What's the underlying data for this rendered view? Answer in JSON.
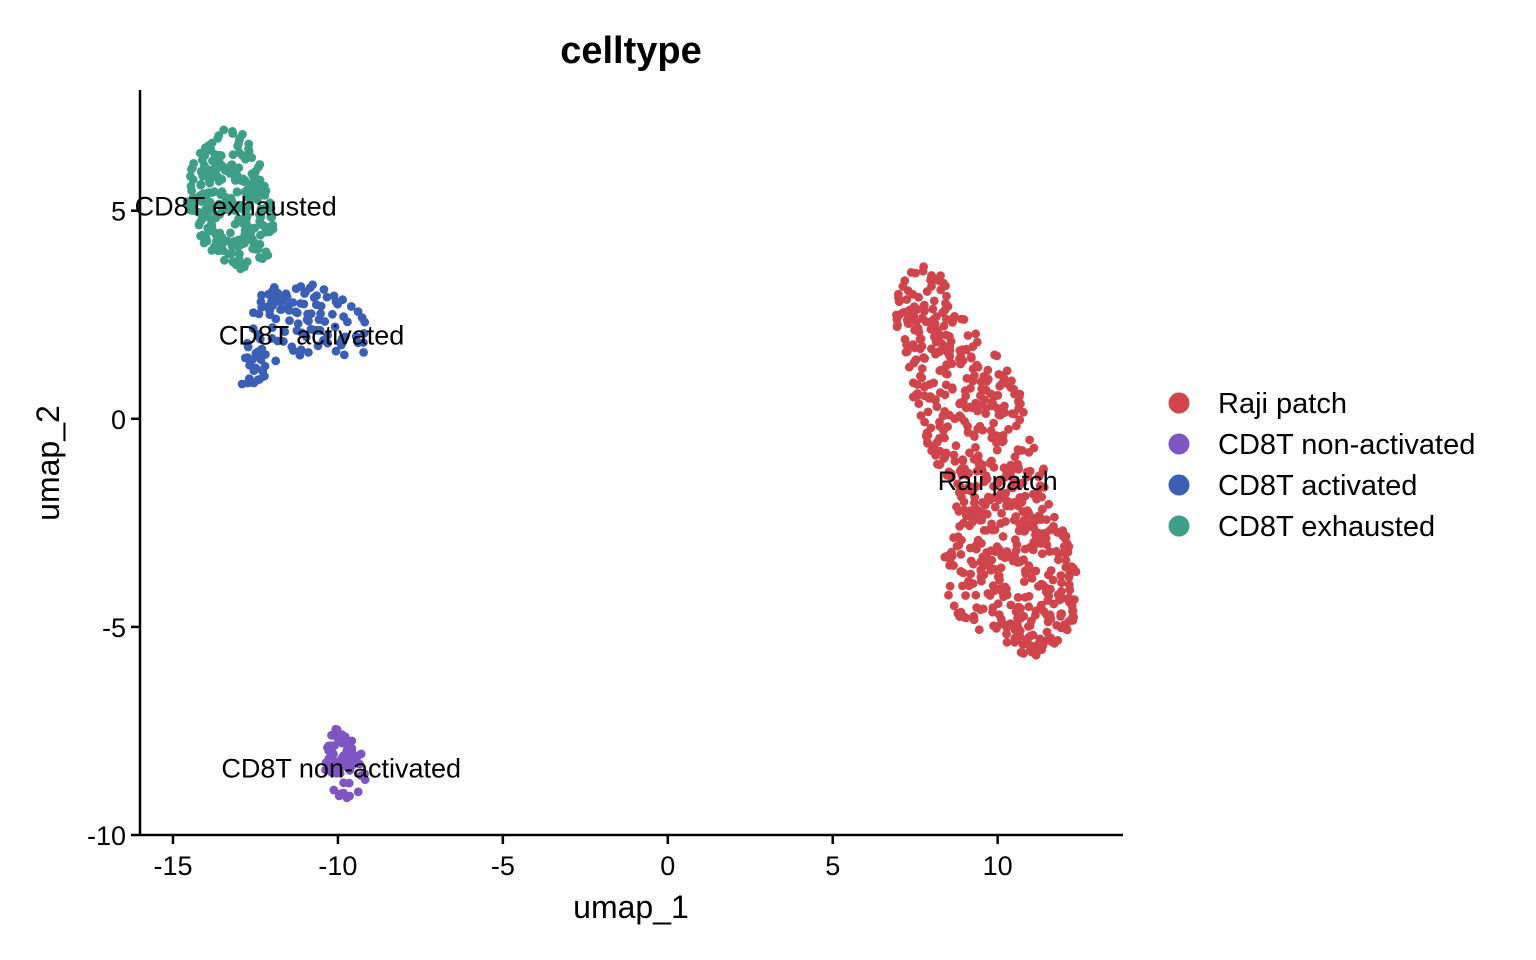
{
  "chart_data": {
    "type": "scatter",
    "title": "celltype",
    "xlabel": "umap_1",
    "ylabel": "umap_2",
    "xlim": [
      -16,
      13.8
    ],
    "ylim": [
      -10,
      7.9
    ],
    "xticks": [
      -15,
      -10,
      -5,
      0,
      5,
      10
    ],
    "yticks": [
      -10,
      -5,
      0,
      5
    ],
    "xtick_labels": [
      "-15",
      "-10",
      "-5",
      "0",
      "5",
      "10"
    ],
    "ytick_labels": [
      "-10",
      "-5",
      "0",
      "5"
    ],
    "grid": false,
    "legend_position": "right",
    "series": [
      {
        "name": "Raji patch",
        "color": "#D0444C",
        "label_pos": [
          10,
          -1.5
        ],
        "outline": [
          [
            6.8,
            3.2
          ],
          [
            7.6,
            3.7
          ],
          [
            8.3,
            3.5
          ],
          [
            8.8,
            2.6
          ],
          [
            9.4,
            2.0
          ],
          [
            10.1,
            1.5
          ],
          [
            10.7,
            0.6
          ],
          [
            11.0,
            -0.5
          ],
          [
            11.4,
            -1.2
          ],
          [
            11.6,
            -2.2
          ],
          [
            12.1,
            -2.8
          ],
          [
            12.5,
            -3.6
          ],
          [
            12.4,
            -4.8
          ],
          [
            11.8,
            -5.5
          ],
          [
            11.0,
            -5.8
          ],
          [
            10.0,
            -5.3
          ],
          [
            9.0,
            -4.9
          ],
          [
            8.3,
            -4.3
          ],
          [
            8.4,
            -3.3
          ],
          [
            8.8,
            -2.5
          ],
          [
            8.4,
            -1.4
          ],
          [
            7.8,
            -0.6
          ],
          [
            7.4,
            0.6
          ],
          [
            7.1,
            1.6
          ],
          [
            6.9,
            2.4
          ]
        ],
        "count": 700
      },
      {
        "name": "CD8T non-activated",
        "color": "#7E55C2",
        "label_pos": [
          -9.9,
          -8.4
        ],
        "outline": [
          [
            -10.1,
            -7.4
          ],
          [
            -9.8,
            -7.5
          ],
          [
            -9.3,
            -7.9
          ],
          [
            -9.1,
            -8.6
          ],
          [
            -9.4,
            -9.0
          ],
          [
            -9.8,
            -9.2
          ],
          [
            -10.2,
            -8.9
          ],
          [
            -10.4,
            -8.4
          ],
          [
            -10.3,
            -7.8
          ]
        ],
        "count": 70
      },
      {
        "name": "CD8T activated",
        "color": "#3A5FB5",
        "label_pos": [
          -10.8,
          2.0
        ],
        "outline": [
          [
            -12.3,
            3.2
          ],
          [
            -11.4,
            3.3
          ],
          [
            -10.6,
            3.2
          ],
          [
            -9.7,
            2.8
          ],
          [
            -9.0,
            2.3
          ],
          [
            -9.0,
            1.6
          ],
          [
            -9.8,
            1.5
          ],
          [
            -10.8,
            1.6
          ],
          [
            -11.6,
            1.4
          ],
          [
            -12.4,
            0.9
          ],
          [
            -13.1,
            0.5
          ],
          [
            -12.9,
            1.2
          ],
          [
            -12.7,
            2.0
          ],
          [
            -12.6,
            2.6
          ]
        ],
        "count": 130
      },
      {
        "name": "CD8T exhausted",
        "color": "#3E9E87",
        "label_pos": [
          -13.1,
          5.1
        ],
        "outline": [
          [
            -14.5,
            6.0
          ],
          [
            -14.0,
            6.6
          ],
          [
            -13.4,
            7.0
          ],
          [
            -12.9,
            6.9
          ],
          [
            -12.4,
            6.2
          ],
          [
            -12.1,
            5.4
          ],
          [
            -11.9,
            4.5
          ],
          [
            -12.1,
            3.9
          ],
          [
            -12.8,
            3.6
          ],
          [
            -13.6,
            3.6
          ],
          [
            -14.2,
            4.4
          ],
          [
            -14.6,
            5.2
          ]
        ],
        "count": 260
      }
    ]
  }
}
